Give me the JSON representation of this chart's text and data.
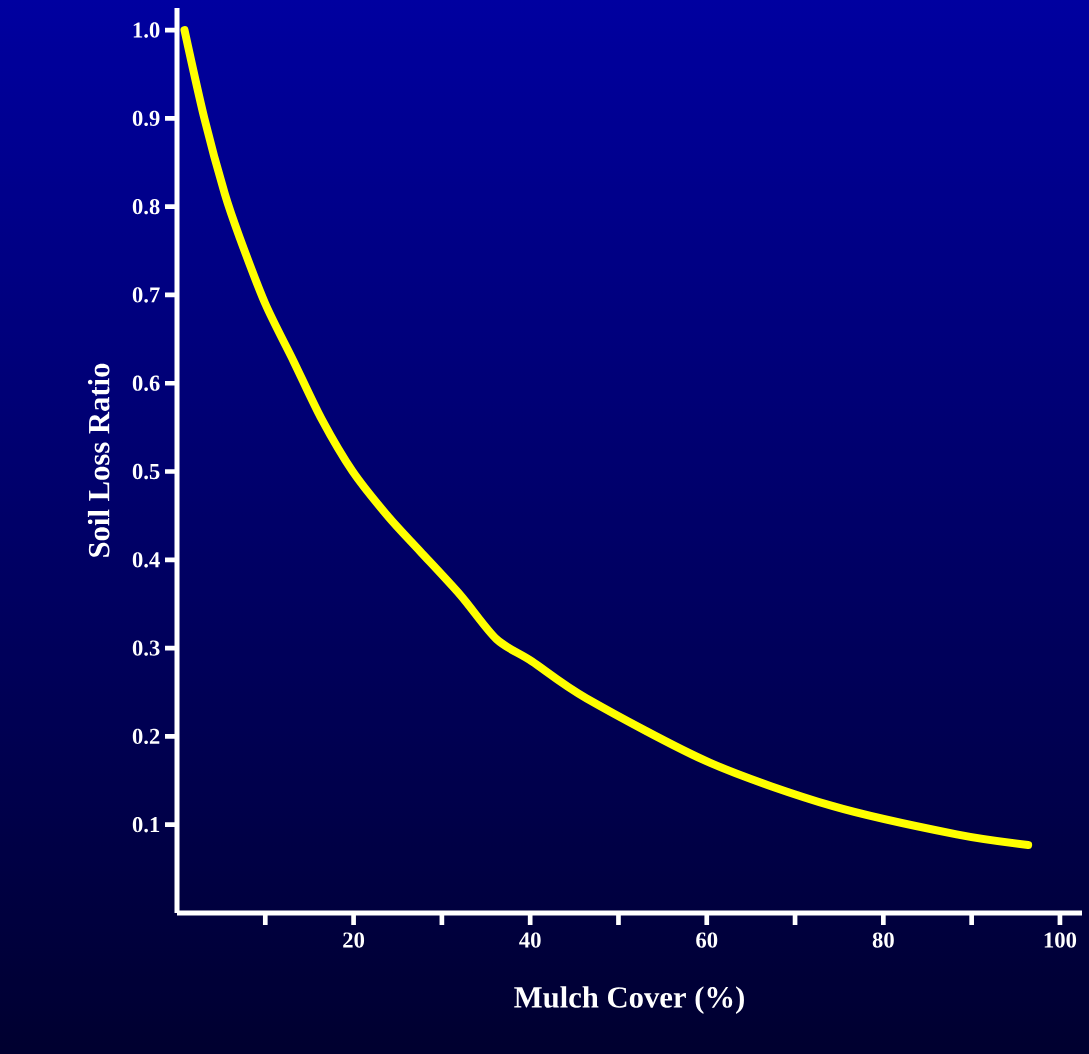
{
  "chart_data": {
    "type": "line",
    "xlabel": "Mulch Cover (%)",
    "ylabel": "Soil Loss Ratio",
    "color": "#ffff00",
    "x": [
      0.85,
      3.1,
      5.4,
      7.1,
      10,
      13.2,
      16.4,
      19.9,
      24,
      27.5,
      32.1,
      36.2,
      40.2,
      46.4,
      60.4,
      74.3,
      88.3,
      96.4
    ],
    "values": [
      1.0,
      0.9,
      0.815,
      0.765,
      0.69,
      0.625,
      0.559,
      0.5,
      0.448,
      0.41,
      0.36,
      0.31,
      0.285,
      0.243,
      0.17,
      0.121,
      0.089,
      0.077
    ],
    "xlim": [
      0,
      102.5
    ],
    "ylim": [
      0,
      1.025
    ],
    "xticks": [
      {
        "value": 10,
        "label": null
      },
      20,
      {
        "value": 30,
        "label": null
      },
      40,
      {
        "value": 50,
        "label": null
      },
      60,
      {
        "value": 70,
        "label": null
      },
      80,
      {
        "value": 90,
        "label": null
      },
      100
    ],
    "yticks": [
      0.1,
      0.2,
      0.3,
      0.4,
      0.5,
      0.6,
      0.7,
      0.8,
      0.9,
      {
        "value": 1.0,
        "label": "1.0"
      }
    ]
  }
}
